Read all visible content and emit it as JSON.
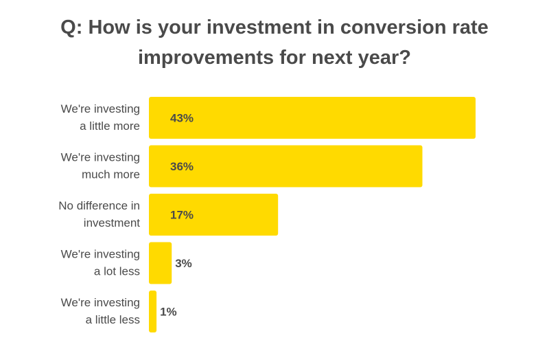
{
  "chart_data": {
    "type": "bar",
    "orientation": "horizontal",
    "title": "Q: How is your investment in conversion rate improvements for next year?",
    "title_lines": [
      "Q: How is your investment in conversion rate",
      "improvements for next year?"
    ],
    "categories": [
      [
        "We're investing",
        "a little more"
      ],
      [
        "We're investing",
        "much more"
      ],
      [
        "No difference in",
        "investment"
      ],
      [
        "We're investing",
        "a lot less"
      ],
      [
        "We're investing",
        "a little less"
      ]
    ],
    "values": [
      43,
      36,
      17,
      3,
      1
    ],
    "value_labels": [
      "43%",
      "36%",
      "17%",
      "3%",
      "1%"
    ],
    "xlim": [
      0,
      43
    ],
    "grid": false,
    "legend": "none",
    "colors": {
      "bar": "#FFDA00",
      "title": "#4a4a4a",
      "label": "#4a4a4a",
      "value_label": "#4a4a4a"
    }
  }
}
